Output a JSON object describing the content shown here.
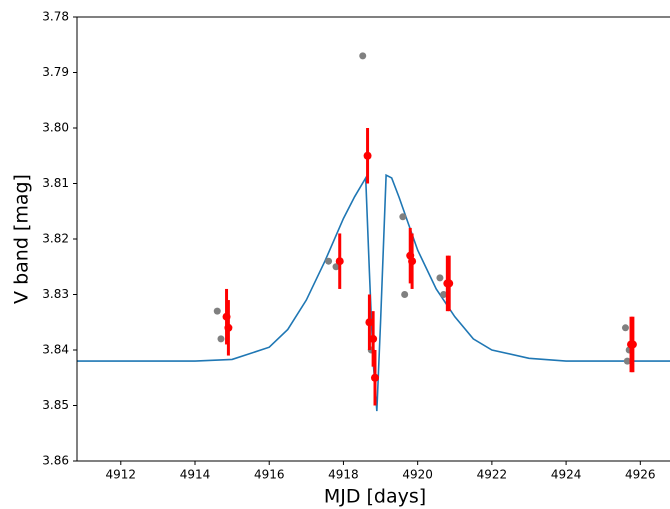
{
  "chart_data": {
    "type": "scatter",
    "xlabel": "MJD [days]",
    "ylabel": "V band [mag]",
    "xlim": [
      4910.82,
      4926.8
    ],
    "ylim": [
      3.86,
      3.78
    ],
    "xticks": [
      4912,
      4914,
      4916,
      4918,
      4920,
      4922,
      4924,
      4926
    ],
    "yticks": [
      3.78,
      3.79,
      {
        "value": 3.8,
        "label": "3.80"
      },
      3.81,
      3.82,
      3.83,
      3.84,
      3.85,
      3.86
    ],
    "series": [
      {
        "type": "scatter",
        "color": "#808080",
        "x": [
          4918.52,
          4914.6,
          4914.7,
          4917.6,
          4917.8,
          4919.6,
          4919.65,
          4920.6,
          4920.7,
          4925.6,
          4925.65,
          4925.7,
          4918.75
        ],
        "values": [
          3.787,
          3.833,
          3.838,
          3.824,
          3.825,
          3.816,
          3.83,
          3.827,
          3.83,
          3.836,
          3.842,
          3.84,
          3.84
        ]
      },
      {
        "type": "errorbar",
        "color": "#ff0000",
        "x": [
          4914.85,
          4914.9,
          4917.9,
          4918.65,
          4918.7,
          4918.8,
          4918.85,
          4919.8,
          4919.85,
          4920.8,
          4920.85,
          4925.75,
          4925.8
        ],
        "values": [
          3.834,
          3.836,
          3.824,
          3.805,
          3.835,
          3.838,
          3.845,
          3.823,
          3.824,
          3.828,
          3.828,
          3.839,
          3.839
        ],
        "errors": [
          0.005,
          0.005,
          0.005,
          0.005,
          0.005,
          0.005,
          0.005,
          0.005,
          0.005,
          0.005,
          0.005,
          0.005,
          0.005
        ]
      },
      {
        "type": "line",
        "color": "#1f77b4",
        "x": [
          4910.82,
          4912,
          4913,
          4914,
          4915,
          4916,
          4916.5,
          4917,
          4917.5,
          4918,
          4918.3,
          4918.6,
          4918.7,
          4918.8,
          4918.9,
          4919.0,
          4919.15,
          4919.3,
          4919.5,
          4920,
          4920.5,
          4921,
          4921.5,
          4922,
          4923,
          4924,
          4926.8
        ],
        "values": [
          3.842,
          3.842,
          3.842,
          3.842,
          3.8417,
          3.8395,
          3.8363,
          3.831,
          3.824,
          3.8163,
          3.8124,
          3.809,
          3.826,
          3.842,
          3.851,
          3.835,
          3.8085,
          3.809,
          3.8125,
          3.822,
          3.829,
          3.834,
          3.838,
          3.84,
          3.8415,
          3.842,
          3.842
        ]
      }
    ]
  }
}
